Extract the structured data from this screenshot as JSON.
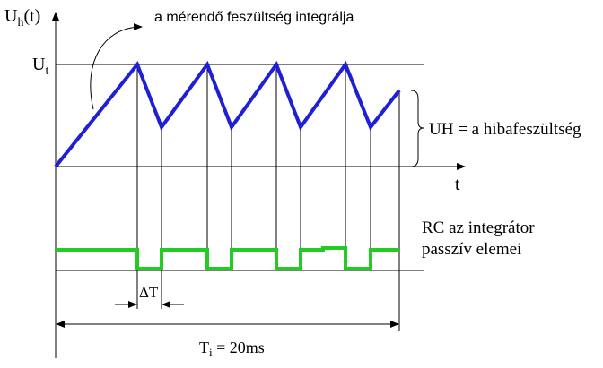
{
  "labels": {
    "y_axis": {
      "main": "U",
      "sub": "h",
      "rest": "(t)"
    },
    "curve_note": "a mérendő feszültség integrálja",
    "level": {
      "main": "U",
      "sub": "t"
    },
    "x_axis": "t",
    "error_voltage": "UH = a hibafeszültség",
    "rc_line1": "RC az integrátor",
    "rc_line2": "passzív elemei",
    "delta_t": "ΔT",
    "period": {
      "main": "T",
      "sub": "i",
      "rest": " = 20ms"
    }
  }
}
